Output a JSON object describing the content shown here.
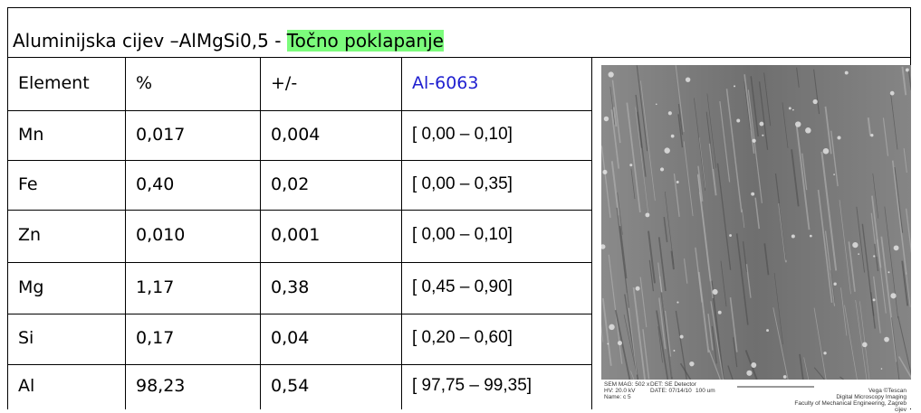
{
  "title": {
    "text": "Aluminijska cijev –AlMgSi0,5 - ",
    "highlight": "Točno poklapanje"
  },
  "table": {
    "header": [
      "Element",
      "%",
      "+/-",
      "Al-6063"
    ],
    "rows": [
      [
        "Mn",
        "0,017",
        "0,004",
        "[ 0,00 – 0,10]"
      ],
      [
        "Fe",
        "0,40",
        "0,02",
        "[ 0,00 – 0,35]"
      ],
      [
        "Zn",
        "0,010",
        "0,001",
        "[ 0,00 – 0,10]"
      ],
      [
        "Mg",
        "1,17",
        "0,38",
        "[ 0,45 – 0,90]"
      ],
      [
        "Si",
        "0,17",
        "0,04",
        "[ 0,20 – 0,60]"
      ],
      [
        "Al",
        "98,23",
        "0,54",
        "[ 97,75 – 99,35]"
      ]
    ]
  },
  "image": {
    "caption": {
      "mag": "SEM MAG: 502 x",
      "hv": "HV: 20.0 kV",
      "name": "Name: c 5",
      "det": "DET: SE Detector",
      "date": "DATE: 07/14/10",
      "scale": "100 um",
      "brand": "Vega ©Tescan",
      "lab": "Digital Microscopy Imaging",
      "faculty": "Faculty of Mechanical Engineering, Zagreb",
      "file": "cijev"
    }
  }
}
